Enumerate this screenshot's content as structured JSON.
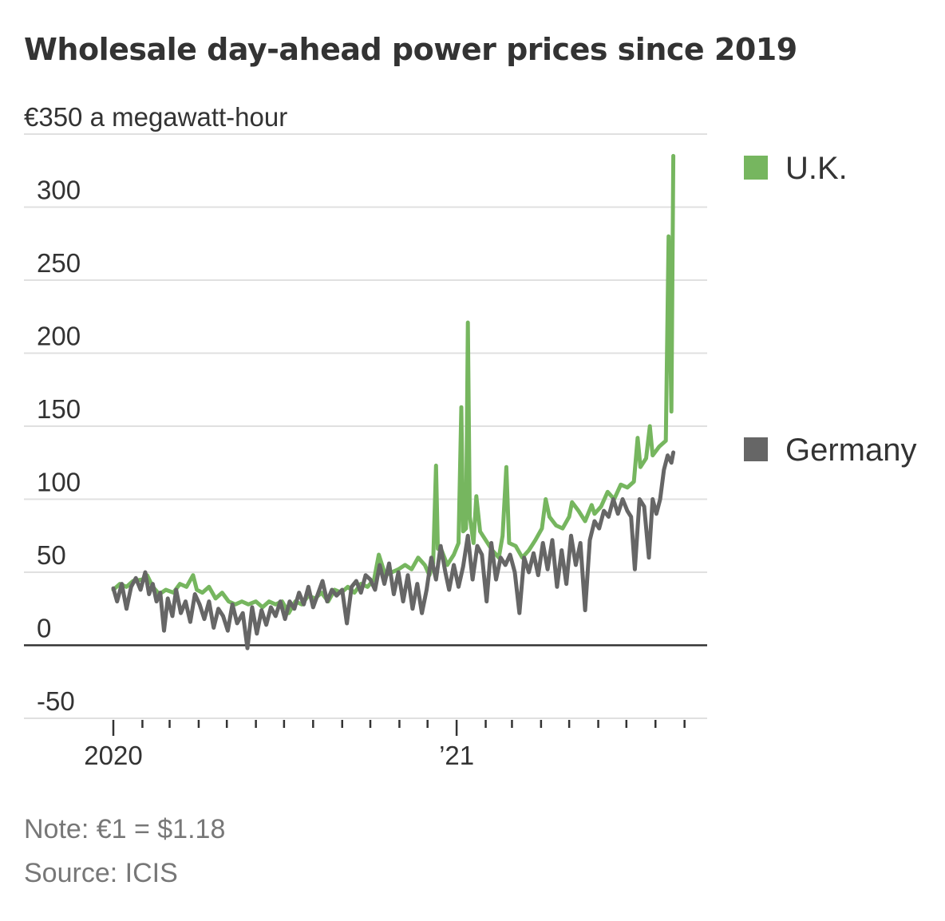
{
  "chart_data": {
    "type": "line",
    "title": "Wholesale day-ahead power prices since 2019",
    "unit_label": "€350 a megawatt-hour",
    "ylim": [
      -50,
      350
    ],
    "y_ticks": [
      {
        "value": 350,
        "label": "€350 a megawatt-hour"
      },
      {
        "value": 300,
        "label": "300"
      },
      {
        "value": 250,
        "label": "250"
      },
      {
        "value": 200,
        "label": "200"
      },
      {
        "value": 150,
        "label": "150"
      },
      {
        "value": 100,
        "label": "100"
      },
      {
        "value": 50,
        "label": "50"
      },
      {
        "value": 0,
        "label": "0"
      },
      {
        "value": -50,
        "label": "-50"
      }
    ],
    "x_axis": {
      "range": [
        "2020-01-01",
        "2021-09-20"
      ],
      "labeled_ticks": [
        {
          "date": "2020-01-01",
          "label": "2020"
        },
        {
          "date": "2021-01-01",
          "label": "’21"
        }
      ],
      "minor_tick_dates": [
        "2020-02-01",
        "2020-03-01",
        "2020-04-01",
        "2020-05-01",
        "2020-06-01",
        "2020-07-01",
        "2020-08-01",
        "2020-09-01",
        "2020-10-01",
        "2020-11-01",
        "2020-12-01",
        "2021-02-01",
        "2021-03-01",
        "2021-04-01",
        "2021-05-01",
        "2021-06-01",
        "2021-07-01",
        "2021-08-01",
        "2021-09-01"
      ]
    },
    "legend_placement": "right",
    "grid": true,
    "series": [
      {
        "name": "U.K.",
        "color": "#76b65f",
        "points": [
          [
            "2020-01-01",
            38
          ],
          [
            "2020-01-08",
            42
          ],
          [
            "2020-01-15",
            40
          ],
          [
            "2020-01-22",
            44
          ],
          [
            "2020-02-01",
            45
          ],
          [
            "2020-02-06",
            48
          ],
          [
            "2020-02-12",
            40
          ],
          [
            "2020-02-19",
            35
          ],
          [
            "2020-02-26",
            38
          ],
          [
            "2020-03-05",
            36
          ],
          [
            "2020-03-12",
            42
          ],
          [
            "2020-03-19",
            40
          ],
          [
            "2020-03-26",
            48
          ],
          [
            "2020-03-30",
            38
          ],
          [
            "2020-04-05",
            36
          ],
          [
            "2020-04-12",
            40
          ],
          [
            "2020-04-19",
            32
          ],
          [
            "2020-04-26",
            36
          ],
          [
            "2020-05-03",
            30
          ],
          [
            "2020-05-10",
            28
          ],
          [
            "2020-05-17",
            30
          ],
          [
            "2020-05-24",
            28
          ],
          [
            "2020-06-01",
            30
          ],
          [
            "2020-06-08",
            26
          ],
          [
            "2020-06-15",
            30
          ],
          [
            "2020-06-22",
            28
          ],
          [
            "2020-06-29",
            30
          ],
          [
            "2020-07-06",
            22
          ],
          [
            "2020-07-13",
            30
          ],
          [
            "2020-07-20",
            28
          ],
          [
            "2020-07-27",
            34
          ],
          [
            "2020-08-03",
            32
          ],
          [
            "2020-08-10",
            36
          ],
          [
            "2020-08-17",
            30
          ],
          [
            "2020-08-24",
            38
          ],
          [
            "2020-08-31",
            36
          ],
          [
            "2020-09-07",
            40
          ],
          [
            "2020-09-14",
            36
          ],
          [
            "2020-09-21",
            42
          ],
          [
            "2020-09-28",
            40
          ],
          [
            "2020-10-05",
            45
          ],
          [
            "2020-10-10",
            62
          ],
          [
            "2020-10-17",
            48
          ],
          [
            "2020-10-24",
            50
          ],
          [
            "2020-10-31",
            52
          ],
          [
            "2020-11-07",
            55
          ],
          [
            "2020-11-14",
            52
          ],
          [
            "2020-11-21",
            60
          ],
          [
            "2020-11-28",
            55
          ],
          [
            "2020-12-03",
            48
          ],
          [
            "2020-12-07",
            56
          ],
          [
            "2020-12-10",
            123
          ],
          [
            "2020-12-12",
            66
          ],
          [
            "2020-12-16",
            65
          ],
          [
            "2020-12-22",
            55
          ],
          [
            "2020-12-29",
            62
          ],
          [
            "2021-01-03",
            70
          ],
          [
            "2021-01-06",
            163
          ],
          [
            "2021-01-08",
            78
          ],
          [
            "2021-01-11",
            80
          ],
          [
            "2021-01-13",
            221
          ],
          [
            "2021-01-15",
            88
          ],
          [
            "2021-01-19",
            70
          ],
          [
            "2021-01-22",
            102
          ],
          [
            "2021-01-26",
            78
          ],
          [
            "2021-02-01",
            72
          ],
          [
            "2021-02-08",
            65
          ],
          [
            "2021-02-15",
            60
          ],
          [
            "2021-02-19",
            75
          ],
          [
            "2021-02-23",
            122
          ],
          [
            "2021-02-26",
            70
          ],
          [
            "2021-03-05",
            68
          ],
          [
            "2021-03-12",
            60
          ],
          [
            "2021-03-19",
            65
          ],
          [
            "2021-03-26",
            72
          ],
          [
            "2021-04-02",
            80
          ],
          [
            "2021-04-06",
            100
          ],
          [
            "2021-04-10",
            88
          ],
          [
            "2021-04-17",
            82
          ],
          [
            "2021-04-24",
            80
          ],
          [
            "2021-05-01",
            88
          ],
          [
            "2021-05-04",
            98
          ],
          [
            "2021-05-11",
            92
          ],
          [
            "2021-05-18",
            85
          ],
          [
            "2021-05-25",
            96
          ],
          [
            "2021-05-28",
            90
          ],
          [
            "2021-06-04",
            95
          ],
          [
            "2021-06-11",
            105
          ],
          [
            "2021-06-18",
            100
          ],
          [
            "2021-06-25",
            110
          ],
          [
            "2021-07-02",
            108
          ],
          [
            "2021-07-09",
            112
          ],
          [
            "2021-07-13",
            142
          ],
          [
            "2021-07-16",
            122
          ],
          [
            "2021-07-22",
            128
          ],
          [
            "2021-07-26",
            150
          ],
          [
            "2021-07-29",
            130
          ],
          [
            "2021-08-05",
            136
          ],
          [
            "2021-08-12",
            140
          ],
          [
            "2021-08-15",
            280
          ],
          [
            "2021-08-18",
            160
          ],
          [
            "2021-08-20",
            335
          ]
        ]
      },
      {
        "name": "Germany",
        "color": "#666666",
        "points": [
          [
            "2020-01-01",
            39
          ],
          [
            "2020-01-05",
            30
          ],
          [
            "2020-01-10",
            42
          ],
          [
            "2020-01-15",
            25
          ],
          [
            "2020-01-20",
            40
          ],
          [
            "2020-01-25",
            46
          ],
          [
            "2020-01-30",
            38
          ],
          [
            "2020-02-04",
            50
          ],
          [
            "2020-02-08",
            35
          ],
          [
            "2020-02-12",
            42
          ],
          [
            "2020-02-16",
            30
          ],
          [
            "2020-02-20",
            36
          ],
          [
            "2020-02-24",
            10
          ],
          [
            "2020-02-28",
            32
          ],
          [
            "2020-03-04",
            20
          ],
          [
            "2020-03-08",
            38
          ],
          [
            "2020-03-13",
            22
          ],
          [
            "2020-03-18",
            30
          ],
          [
            "2020-03-23",
            16
          ],
          [
            "2020-03-28",
            35
          ],
          [
            "2020-04-02",
            28
          ],
          [
            "2020-04-07",
            18
          ],
          [
            "2020-04-12",
            30
          ],
          [
            "2020-04-17",
            12
          ],
          [
            "2020-04-22",
            25
          ],
          [
            "2020-04-27",
            20
          ],
          [
            "2020-05-02",
            10
          ],
          [
            "2020-05-07",
            28
          ],
          [
            "2020-05-12",
            15
          ],
          [
            "2020-05-18",
            22
          ],
          [
            "2020-05-23",
            -2
          ],
          [
            "2020-05-28",
            26
          ],
          [
            "2020-06-02",
            8
          ],
          [
            "2020-06-07",
            24
          ],
          [
            "2020-06-12",
            14
          ],
          [
            "2020-06-17",
            26
          ],
          [
            "2020-06-22",
            20
          ],
          [
            "2020-06-27",
            30
          ],
          [
            "2020-07-02",
            18
          ],
          [
            "2020-07-07",
            30
          ],
          [
            "2020-07-12",
            25
          ],
          [
            "2020-07-17",
            36
          ],
          [
            "2020-07-22",
            28
          ],
          [
            "2020-07-27",
            40
          ],
          [
            "2020-08-01",
            26
          ],
          [
            "2020-08-06",
            35
          ],
          [
            "2020-08-11",
            44
          ],
          [
            "2020-08-16",
            30
          ],
          [
            "2020-08-21",
            38
          ],
          [
            "2020-08-26",
            34
          ],
          [
            "2020-09-01",
            38
          ],
          [
            "2020-09-06",
            15
          ],
          [
            "2020-09-11",
            40
          ],
          [
            "2020-09-16",
            44
          ],
          [
            "2020-09-21",
            36
          ],
          [
            "2020-09-26",
            48
          ],
          [
            "2020-10-01",
            45
          ],
          [
            "2020-10-06",
            38
          ],
          [
            "2020-10-11",
            55
          ],
          [
            "2020-10-16",
            42
          ],
          [
            "2020-10-21",
            56
          ],
          [
            "2020-10-26",
            35
          ],
          [
            "2020-10-31",
            50
          ],
          [
            "2020-11-05",
            30
          ],
          [
            "2020-11-10",
            48
          ],
          [
            "2020-11-15",
            25
          ],
          [
            "2020-11-20",
            42
          ],
          [
            "2020-11-25",
            22
          ],
          [
            "2020-11-30",
            38
          ],
          [
            "2020-12-05",
            60
          ],
          [
            "2020-12-10",
            45
          ],
          [
            "2020-12-15",
            68
          ],
          [
            "2020-12-20",
            50
          ],
          [
            "2020-12-24",
            38
          ],
          [
            "2020-12-29",
            55
          ],
          [
            "2021-01-03",
            40
          ],
          [
            "2021-01-08",
            54
          ],
          [
            "2021-01-13",
            75
          ],
          [
            "2021-01-18",
            45
          ],
          [
            "2021-01-23",
            68
          ],
          [
            "2021-01-28",
            62
          ],
          [
            "2021-02-02",
            30
          ],
          [
            "2021-02-07",
            70
          ],
          [
            "2021-02-12",
            45
          ],
          [
            "2021-02-17",
            60
          ],
          [
            "2021-02-22",
            55
          ],
          [
            "2021-02-27",
            62
          ],
          [
            "2021-03-04",
            50
          ],
          [
            "2021-03-09",
            22
          ],
          [
            "2021-03-14",
            60
          ],
          [
            "2021-03-19",
            50
          ],
          [
            "2021-03-24",
            63
          ],
          [
            "2021-03-29",
            48
          ],
          [
            "2021-04-03",
            70
          ],
          [
            "2021-04-08",
            52
          ],
          [
            "2021-04-13",
            72
          ],
          [
            "2021-04-18",
            40
          ],
          [
            "2021-04-23",
            65
          ],
          [
            "2021-04-28",
            42
          ],
          [
            "2021-05-03",
            75
          ],
          [
            "2021-05-08",
            55
          ],
          [
            "2021-05-13",
            70
          ],
          [
            "2021-05-18",
            24
          ],
          [
            "2021-05-23",
            72
          ],
          [
            "2021-05-28",
            85
          ],
          [
            "2021-06-02",
            80
          ],
          [
            "2021-06-07",
            92
          ],
          [
            "2021-06-12",
            88
          ],
          [
            "2021-06-17",
            100
          ],
          [
            "2021-06-22",
            90
          ],
          [
            "2021-06-27",
            100
          ],
          [
            "2021-07-02",
            92
          ],
          [
            "2021-07-06",
            88
          ],
          [
            "2021-07-10",
            52
          ],
          [
            "2021-07-15",
            100
          ],
          [
            "2021-07-20",
            95
          ],
          [
            "2021-07-25",
            60
          ],
          [
            "2021-07-29",
            100
          ],
          [
            "2021-08-02",
            90
          ],
          [
            "2021-08-06",
            100
          ],
          [
            "2021-08-10",
            120
          ],
          [
            "2021-08-14",
            130
          ],
          [
            "2021-08-18",
            125
          ],
          [
            "2021-08-20",
            132
          ]
        ]
      }
    ]
  },
  "note": "Note: €1 = $1.18",
  "source": "Source: ICIS",
  "colors": {
    "uk": "#76b65f",
    "germany": "#666666",
    "gridline": "#e0e0e0",
    "zero_line": "#333333",
    "text": "#333333",
    "footnote": "#777777"
  }
}
